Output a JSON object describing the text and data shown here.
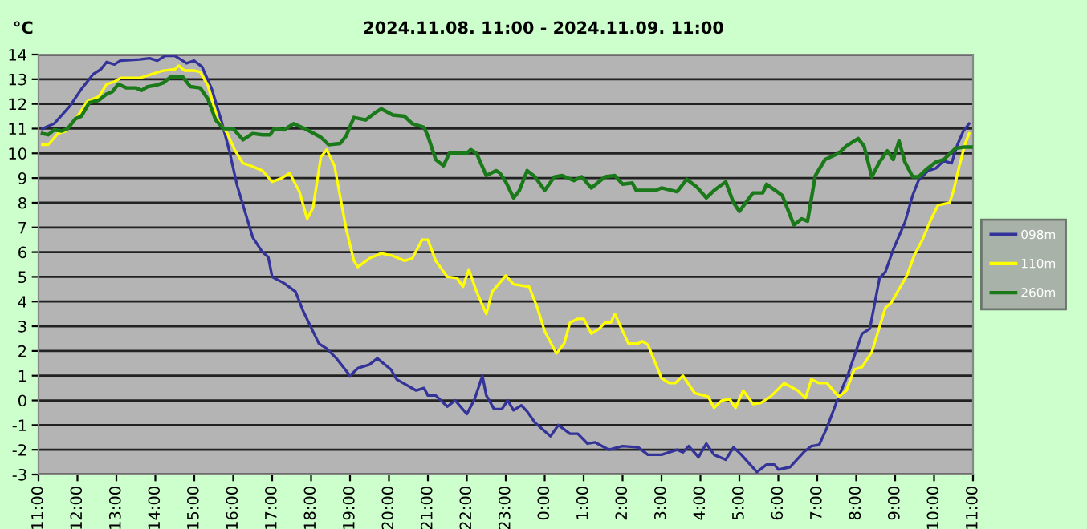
{
  "chart_data": {
    "type": "line",
    "title": "2024.11.08. 11:00 - 2024.11.09. 11:00",
    "ylabel": "°C",
    "xlim": [
      "2024-11-08T11:00",
      "2024-11-09T11:00"
    ],
    "ylim": [
      -3,
      14
    ],
    "yticks": [
      -3,
      -2,
      -1,
      0,
      1,
      2,
      3,
      4,
      5,
      6,
      7,
      8,
      9,
      10,
      11,
      12,
      13,
      14
    ],
    "xticks": [
      {
        "value": "2024-11-08T11:00",
        "label": "11:00"
      },
      {
        "value": "2024-11-08T12:00",
        "label": "12:00"
      },
      {
        "value": "2024-11-08T13:00",
        "label": "13:00"
      },
      {
        "value": "2024-11-08T14:00",
        "label": "14:00"
      },
      {
        "value": "2024-11-08T15:00",
        "label": "15:00"
      },
      {
        "value": "2024-11-08T16:00",
        "label": "16:00"
      },
      {
        "value": "2024-11-08T17:00",
        "label": "17:00"
      },
      {
        "value": "2024-11-08T18:00",
        "label": "18:00"
      },
      {
        "value": "2024-11-08T19:00",
        "label": "19:00"
      },
      {
        "value": "2024-11-08T20:00",
        "label": "20:00"
      },
      {
        "value": "2024-11-08T21:00",
        "label": "21:00"
      },
      {
        "value": "2024-11-08T22:00",
        "label": "22:00"
      },
      {
        "value": "2024-11-08T23:00",
        "label": "23:00"
      },
      {
        "value": "2024-11-09T00:00",
        "label": "0:00"
      },
      {
        "value": "2024-11-09T01:00",
        "label": "1:00"
      },
      {
        "value": "2024-11-09T02:00",
        "label": "2:00"
      },
      {
        "value": "2024-11-09T03:00",
        "label": "3:00"
      },
      {
        "value": "2024-11-09T04:00",
        "label": "4:00"
      },
      {
        "value": "2024-11-09T05:00",
        "label": "5:00"
      },
      {
        "value": "2024-11-09T06:00",
        "label": "6:00"
      },
      {
        "value": "2024-11-09T07:00",
        "label": "7:00"
      },
      {
        "value": "2024-11-09T08:00",
        "label": "8:00"
      },
      {
        "value": "2024-11-09T09:00",
        "label": "9:00"
      },
      {
        "value": "2024-11-09T10:00",
        "label": "10:00"
      },
      {
        "value": "2024-11-09T11:00",
        "label": "11:00"
      }
    ],
    "grid": "y",
    "legend": "right",
    "marker": "none",
    "line_style": "solid",
    "series": [
      {
        "name": "098m",
        "color": "#333399",
        "x": [
          "2024-11-08T11:06",
          "2024-11-08T11:24",
          "2024-11-08T11:48",
          "2024-11-08T12:06",
          "2024-11-08T12:24",
          "2024-11-08T12:36",
          "2024-11-08T12:45",
          "2024-11-08T12:57",
          "2024-11-08T13:06",
          "2024-11-08T13:36",
          "2024-11-08T13:51",
          "2024-11-08T14:03",
          "2024-11-08T14:15",
          "2024-11-08T14:30",
          "2024-11-08T14:42",
          "2024-11-08T14:48",
          "2024-11-08T15:00",
          "2024-11-08T15:12",
          "2024-11-08T15:27",
          "2024-11-08T15:42",
          "2024-11-08T15:54",
          "2024-11-08T16:06",
          "2024-11-08T16:30",
          "2024-11-08T16:45",
          "2024-11-08T16:54",
          "2024-11-08T17:00",
          "2024-11-08T17:18",
          "2024-11-08T17:36",
          "2024-11-08T17:48",
          "2024-11-08T18:12",
          "2024-11-08T18:24",
          "2024-11-08T18:39",
          "2024-11-08T19:00",
          "2024-11-08T19:12",
          "2024-11-08T19:30",
          "2024-11-08T19:42",
          "2024-11-08T20:03",
          "2024-11-08T20:12",
          "2024-11-08T20:42",
          "2024-11-08T20:54",
          "2024-11-08T21:00",
          "2024-11-08T21:12",
          "2024-11-08T21:30",
          "2024-11-08T21:42",
          "2024-11-08T22:00",
          "2024-11-08T22:12",
          "2024-11-08T22:24",
          "2024-11-08T22:30",
          "2024-11-08T22:42",
          "2024-11-08T22:54",
          "2024-11-08T23:03",
          "2024-11-08T23:12",
          "2024-11-08T23:24",
          "2024-11-08T23:33",
          "2024-11-08T23:45",
          "2024-11-09T00:00",
          "2024-11-09T00:09",
          "2024-11-09T00:21",
          "2024-11-09T00:39",
          "2024-11-09T00:51",
          "2024-11-09T01:06",
          "2024-11-09T01:18",
          "2024-11-09T01:39",
          "2024-11-09T02:00",
          "2024-11-09T02:24",
          "2024-11-09T02:39",
          "2024-11-09T03:00",
          "2024-11-09T03:24",
          "2024-11-09T03:33",
          "2024-11-09T03:42",
          "2024-11-09T03:57",
          "2024-11-09T04:09",
          "2024-11-09T04:21",
          "2024-11-09T04:39",
          "2024-11-09T04:51",
          "2024-11-09T05:03",
          "2024-11-09T05:15",
          "2024-11-09T05:27",
          "2024-11-09T05:42",
          "2024-11-09T05:54",
          "2024-11-09T06:00",
          "2024-11-09T06:18",
          "2024-11-09T06:39",
          "2024-11-09T06:51",
          "2024-11-09T07:03",
          "2024-11-09T07:15",
          "2024-11-09T07:30",
          "2024-11-09T07:48",
          "2024-11-09T08:09",
          "2024-11-09T08:21",
          "2024-11-09T08:36",
          "2024-11-09T08:45",
          "2024-11-09T08:57",
          "2024-11-09T09:15",
          "2024-11-09T09:27",
          "2024-11-09T09:36",
          "2024-11-09T09:51",
          "2024-11-09T10:03",
          "2024-11-09T10:15",
          "2024-11-09T10:27",
          "2024-11-09T10:36",
          "2024-11-09T10:45",
          "2024-11-09T10:54"
        ],
        "values": [
          11.0,
          11.2,
          11.9,
          12.6,
          13.2,
          13.4,
          13.7,
          13.6,
          13.75,
          13.8,
          13.85,
          13.75,
          13.95,
          13.95,
          13.75,
          13.65,
          13.75,
          13.5,
          12.6,
          11.3,
          10.1,
          8.7,
          6.6,
          6.0,
          5.8,
          5.0,
          4.75,
          4.4,
          3.6,
          2.3,
          2.1,
          1.7,
          1.0,
          1.3,
          1.45,
          1.7,
          1.25,
          0.85,
          0.4,
          0.5,
          0.2,
          0.2,
          -0.25,
          0.0,
          -0.55,
          0.05,
          1.0,
          0.2,
          -0.35,
          -0.35,
          0.0,
          -0.4,
          -0.2,
          -0.45,
          -0.9,
          -1.25,
          -1.45,
          -1.0,
          -1.35,
          -1.35,
          -1.75,
          -1.7,
          -2.0,
          -1.85,
          -1.9,
          -2.2,
          -2.2,
          -2.0,
          -2.1,
          -1.85,
          -2.3,
          -1.75,
          -2.2,
          -2.4,
          -1.9,
          -2.2,
          -2.55,
          -2.9,
          -2.6,
          -2.6,
          -2.8,
          -2.7,
          -2.1,
          -1.85,
          -1.8,
          -1.1,
          -0.05,
          1.1,
          2.7,
          2.9,
          4.95,
          5.2,
          6.1,
          7.2,
          8.3,
          8.9,
          9.3,
          9.4,
          9.7,
          9.6,
          10.35,
          10.9,
          11.2
        ]
      },
      {
        "name": "110m",
        "color": "#ffff00",
        "x": [
          "2024-11-08T11:06",
          "2024-11-08T11:15",
          "2024-11-08T11:30",
          "2024-11-08T11:42",
          "2024-11-08T12:00",
          "2024-11-08T12:15",
          "2024-11-08T12:33",
          "2024-11-08T12:45",
          "2024-11-08T12:57",
          "2024-11-08T13:06",
          "2024-11-08T13:36",
          "2024-11-08T13:54",
          "2024-11-08T14:12",
          "2024-11-08T14:30",
          "2024-11-08T14:36",
          "2024-11-08T14:45",
          "2024-11-08T15:00",
          "2024-11-08T15:09",
          "2024-11-08T15:21",
          "2024-11-08T15:36",
          "2024-11-08T15:51",
          "2024-11-08T16:03",
          "2024-11-08T16:15",
          "2024-11-08T16:27",
          "2024-11-08T16:45",
          "2024-11-08T17:00",
          "2024-11-08T17:15",
          "2024-11-08T17:27",
          "2024-11-08T17:42",
          "2024-11-08T17:54",
          "2024-11-08T18:03",
          "2024-11-08T18:15",
          "2024-11-08T18:24",
          "2024-11-08T18:36",
          "2024-11-08T18:54",
          "2024-11-08T19:06",
          "2024-11-08T19:12",
          "2024-11-08T19:30",
          "2024-11-08T19:48",
          "2024-11-08T20:06",
          "2024-11-08T20:24",
          "2024-11-08T20:36",
          "2024-11-08T20:51",
          "2024-11-08T21:00",
          "2024-11-08T21:12",
          "2024-11-08T21:30",
          "2024-11-08T21:45",
          "2024-11-08T21:54",
          "2024-11-08T22:03",
          "2024-11-08T22:15",
          "2024-11-08T22:30",
          "2024-11-08T22:39",
          "2024-11-08T23:00",
          "2024-11-08T23:12",
          "2024-11-08T23:36",
          "2024-11-08T23:48",
          "2024-11-09T00:00",
          "2024-11-09T00:18",
          "2024-11-09T00:30",
          "2024-11-09T00:39",
          "2024-11-09T00:51",
          "2024-11-09T01:00",
          "2024-11-09T01:12",
          "2024-11-09T01:24",
          "2024-11-09T01:33",
          "2024-11-09T01:42",
          "2024-11-09T01:48",
          "2024-11-09T02:09",
          "2024-11-09T02:24",
          "2024-11-09T02:30",
          "2024-11-09T02:39",
          "2024-11-09T03:00",
          "2024-11-09T03:12",
          "2024-11-09T03:21",
          "2024-11-09T03:33",
          "2024-11-09T03:51",
          "2024-11-09T04:12",
          "2024-11-09T04:21",
          "2024-11-09T04:33",
          "2024-11-09T04:45",
          "2024-11-09T04:54",
          "2024-11-09T05:06",
          "2024-11-09T05:21",
          "2024-11-09T05:33",
          "2024-11-09T05:48",
          "2024-11-09T06:09",
          "2024-11-09T06:30",
          "2024-11-09T06:42",
          "2024-11-09T06:51",
          "2024-11-09T07:03",
          "2024-11-09T07:15",
          "2024-11-09T07:33",
          "2024-11-09T07:45",
          "2024-11-09T07:57",
          "2024-11-09T08:09",
          "2024-11-09T08:24",
          "2024-11-09T08:45",
          "2024-11-09T08:54",
          "2024-11-09T09:18",
          "2024-11-09T09:30",
          "2024-11-09T09:42",
          "2024-11-09T09:54",
          "2024-11-09T10:06",
          "2024-11-09T10:24",
          "2024-11-09T10:30",
          "2024-11-09T10:39",
          "2024-11-09T10:48",
          "2024-11-09T10:54"
        ],
        "values": [
          10.35,
          10.35,
          10.8,
          10.9,
          11.5,
          12.1,
          12.3,
          12.8,
          12.9,
          13.05,
          13.05,
          13.2,
          13.35,
          13.4,
          13.55,
          13.35,
          13.35,
          13.3,
          12.75,
          11.35,
          10.8,
          10.1,
          9.6,
          9.5,
          9.3,
          8.85,
          9.0,
          9.2,
          8.45,
          7.35,
          7.8,
          9.85,
          10.15,
          9.5,
          6.95,
          5.65,
          5.4,
          5.75,
          5.95,
          5.85,
          5.65,
          5.75,
          6.5,
          6.5,
          5.65,
          5.0,
          4.95,
          4.6,
          5.3,
          4.4,
          3.5,
          4.4,
          5.05,
          4.7,
          4.6,
          3.8,
          2.8,
          1.9,
          2.3,
          3.15,
          3.3,
          3.3,
          2.7,
          2.9,
          3.15,
          3.15,
          3.5,
          2.3,
          2.3,
          2.4,
          2.25,
          0.9,
          0.7,
          0.7,
          1.0,
          0.3,
          0.15,
          -0.3,
          0.0,
          0.05,
          -0.3,
          0.4,
          -0.15,
          -0.1,
          0.15,
          0.7,
          0.4,
          0.1,
          0.85,
          0.7,
          0.7,
          0.15,
          0.4,
          1.25,
          1.35,
          1.95,
          3.75,
          3.95,
          5.05,
          5.9,
          6.5,
          7.25,
          7.9,
          8.0,
          8.5,
          9.5,
          10.4,
          10.8
        ]
      },
      {
        "name": "260m",
        "color": "#1a7a1a",
        "x": [
          "2024-11-08T11:06",
          "2024-11-08T11:15",
          "2024-11-08T11:24",
          "2024-11-08T11:36",
          "2024-11-08T11:45",
          "2024-11-08T11:57",
          "2024-11-08T12:06",
          "2024-11-08T12:18",
          "2024-11-08T12:33",
          "2024-11-08T12:45",
          "2024-11-08T12:54",
          "2024-11-08T13:03",
          "2024-11-08T13:15",
          "2024-11-08T13:30",
          "2024-11-08T13:39",
          "2024-11-08T13:48",
          "2024-11-08T14:00",
          "2024-11-08T14:12",
          "2024-11-08T14:24",
          "2024-11-08T14:42",
          "2024-11-08T14:54",
          "2024-11-08T15:09",
          "2024-11-08T15:21",
          "2024-11-08T15:33",
          "2024-11-08T15:45",
          "2024-11-08T16:00",
          "2024-11-08T16:15",
          "2024-11-08T16:30",
          "2024-11-08T16:45",
          "2024-11-08T16:57",
          "2024-11-08T17:03",
          "2024-11-08T17:18",
          "2024-11-08T17:33",
          "2024-11-08T17:54",
          "2024-11-08T18:15",
          "2024-11-08T18:27",
          "2024-11-08T18:45",
          "2024-11-08T18:54",
          "2024-11-08T19:06",
          "2024-11-08T19:24",
          "2024-11-08T19:39",
          "2024-11-08T19:48",
          "2024-11-08T20:06",
          "2024-11-08T20:24",
          "2024-11-08T20:36",
          "2024-11-08T20:54",
          "2024-11-08T21:00",
          "2024-11-08T21:12",
          "2024-11-08T21:24",
          "2024-11-08T21:33",
          "2024-11-08T22:00",
          "2024-11-08T22:06",
          "2024-11-08T22:15",
          "2024-11-08T22:30",
          "2024-11-08T22:45",
          "2024-11-08T22:51",
          "2024-11-08T23:00",
          "2024-11-08T23:12",
          "2024-11-08T23:21",
          "2024-11-08T23:33",
          "2024-11-08T23:45",
          "2024-11-09T00:00",
          "2024-11-09T00:15",
          "2024-11-09T00:27",
          "2024-11-09T00:45",
          "2024-11-09T00:57",
          "2024-11-09T01:12",
          "2024-11-09T01:33",
          "2024-11-09T01:48",
          "2024-11-09T02:00",
          "2024-11-09T02:15",
          "2024-11-09T02:21",
          "2024-11-09T02:51",
          "2024-11-09T03:00",
          "2024-11-09T03:24",
          "2024-11-09T03:39",
          "2024-11-09T03:54",
          "2024-11-09T04:09",
          "2024-11-09T04:21",
          "2024-11-09T04:39",
          "2024-11-09T04:51",
          "2024-11-09T05:00",
          "2024-11-09T05:21",
          "2024-11-09T05:36",
          "2024-11-09T05:42",
          "2024-11-09T06:06",
          "2024-11-09T06:24",
          "2024-11-09T06:36",
          "2024-11-09T06:45",
          "2024-11-09T06:57",
          "2024-11-09T07:12",
          "2024-11-09T07:33",
          "2024-11-09T07:45",
          "2024-11-09T08:03",
          "2024-11-09T08:12",
          "2024-11-09T08:24",
          "2024-11-09T08:36",
          "2024-11-09T08:48",
          "2024-11-09T08:57",
          "2024-11-09T09:06",
          "2024-11-09T09:15",
          "2024-11-09T09:27",
          "2024-11-09T09:36",
          "2024-11-09T09:48",
          "2024-11-09T10:03",
          "2024-11-09T10:15",
          "2024-11-09T10:33",
          "2024-11-09T10:45",
          "2024-11-09T10:57"
        ],
        "values": [
          10.8,
          10.75,
          10.95,
          10.9,
          11.0,
          11.4,
          11.5,
          12.05,
          12.15,
          12.4,
          12.5,
          12.8,
          12.65,
          12.65,
          12.55,
          12.7,
          12.75,
          12.85,
          13.1,
          13.1,
          12.7,
          12.65,
          12.2,
          11.35,
          11.0,
          11.0,
          10.55,
          10.8,
          10.75,
          10.75,
          11.0,
          10.95,
          11.2,
          10.95,
          10.65,
          10.35,
          10.4,
          10.7,
          11.45,
          11.35,
          11.65,
          11.8,
          11.55,
          11.5,
          11.2,
          11.05,
          10.7,
          9.75,
          9.5,
          10.0,
          10.0,
          10.15,
          10.0,
          9.1,
          9.3,
          9.2,
          8.85,
          8.2,
          8.5,
          9.3,
          9.05,
          8.5,
          9.05,
          9.1,
          8.9,
          9.05,
          8.6,
          9.05,
          9.1,
          8.75,
          8.8,
          8.5,
          8.5,
          8.6,
          8.45,
          8.95,
          8.65,
          8.2,
          8.5,
          8.85,
          8.0,
          7.65,
          8.4,
          8.4,
          8.75,
          8.3,
          7.1,
          7.35,
          7.25,
          9.1,
          9.75,
          10.0,
          10.3,
          10.6,
          10.3,
          9.05,
          9.65,
          10.1,
          9.75,
          10.5,
          9.65,
          9.05,
          9.05,
          9.35,
          9.65,
          9.75,
          10.2,
          10.25,
          10.25
        ]
      }
    ]
  }
}
